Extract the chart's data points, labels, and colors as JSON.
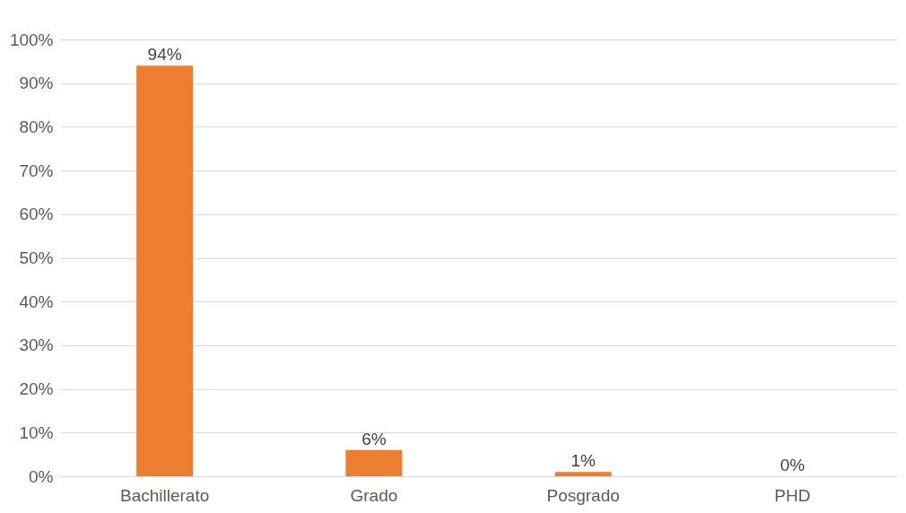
{
  "chart_data": {
    "type": "bar",
    "categories": [
      "Bachillerato",
      "Grado",
      "Posgrado",
      "PHD"
    ],
    "values": [
      94,
      6,
      1,
      0
    ],
    "color": "#ed7d31",
    "value_labels": [
      "94%",
      "6%",
      "1%",
      "0%"
    ],
    "ylim": [
      0,
      100
    ],
    "yticks": [
      {
        "value": 0,
        "label": "0%"
      },
      {
        "value": 10,
        "label": "10%"
      },
      {
        "value": 20,
        "label": "20%"
      },
      {
        "value": 30,
        "label": "30%"
      },
      {
        "value": 40,
        "label": "40%"
      },
      {
        "value": 50,
        "label": "50%"
      },
      {
        "value": 60,
        "label": "60%"
      },
      {
        "value": 70,
        "label": "70%"
      },
      {
        "value": 80,
        "label": "80%"
      },
      {
        "value": 90,
        "label": "90%"
      },
      {
        "value": 100,
        "label": "100%"
      }
    ],
    "grid": "y"
  }
}
